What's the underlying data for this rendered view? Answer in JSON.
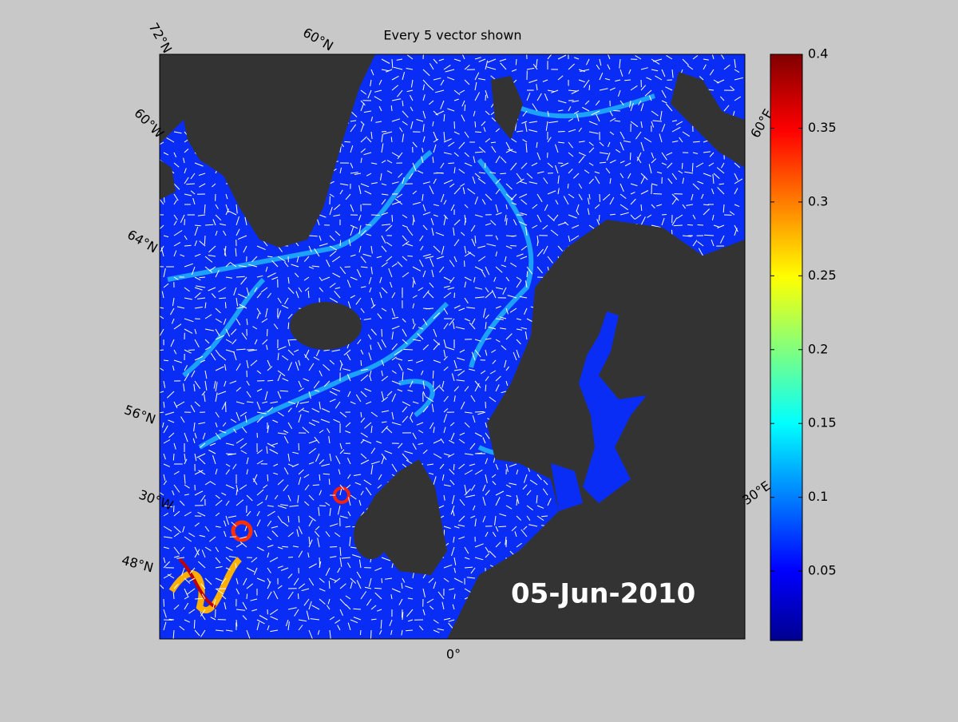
{
  "map": {
    "title": "Every 5 vector shown",
    "date_label": "05-Jun-2010",
    "graticule_labels": [
      "72°N",
      "60°N",
      "60°W",
      "64°N",
      "56°N",
      "30°W",
      "48°N",
      "0°",
      "60°E",
      "30°E"
    ]
  },
  "colorbar": {
    "colormap": "jet",
    "lim": [
      0.003,
      0.4
    ],
    "ticks": [
      0.05,
      0.1,
      0.15,
      0.2,
      0.25,
      0.3,
      0.35,
      0.4
    ]
  }
}
